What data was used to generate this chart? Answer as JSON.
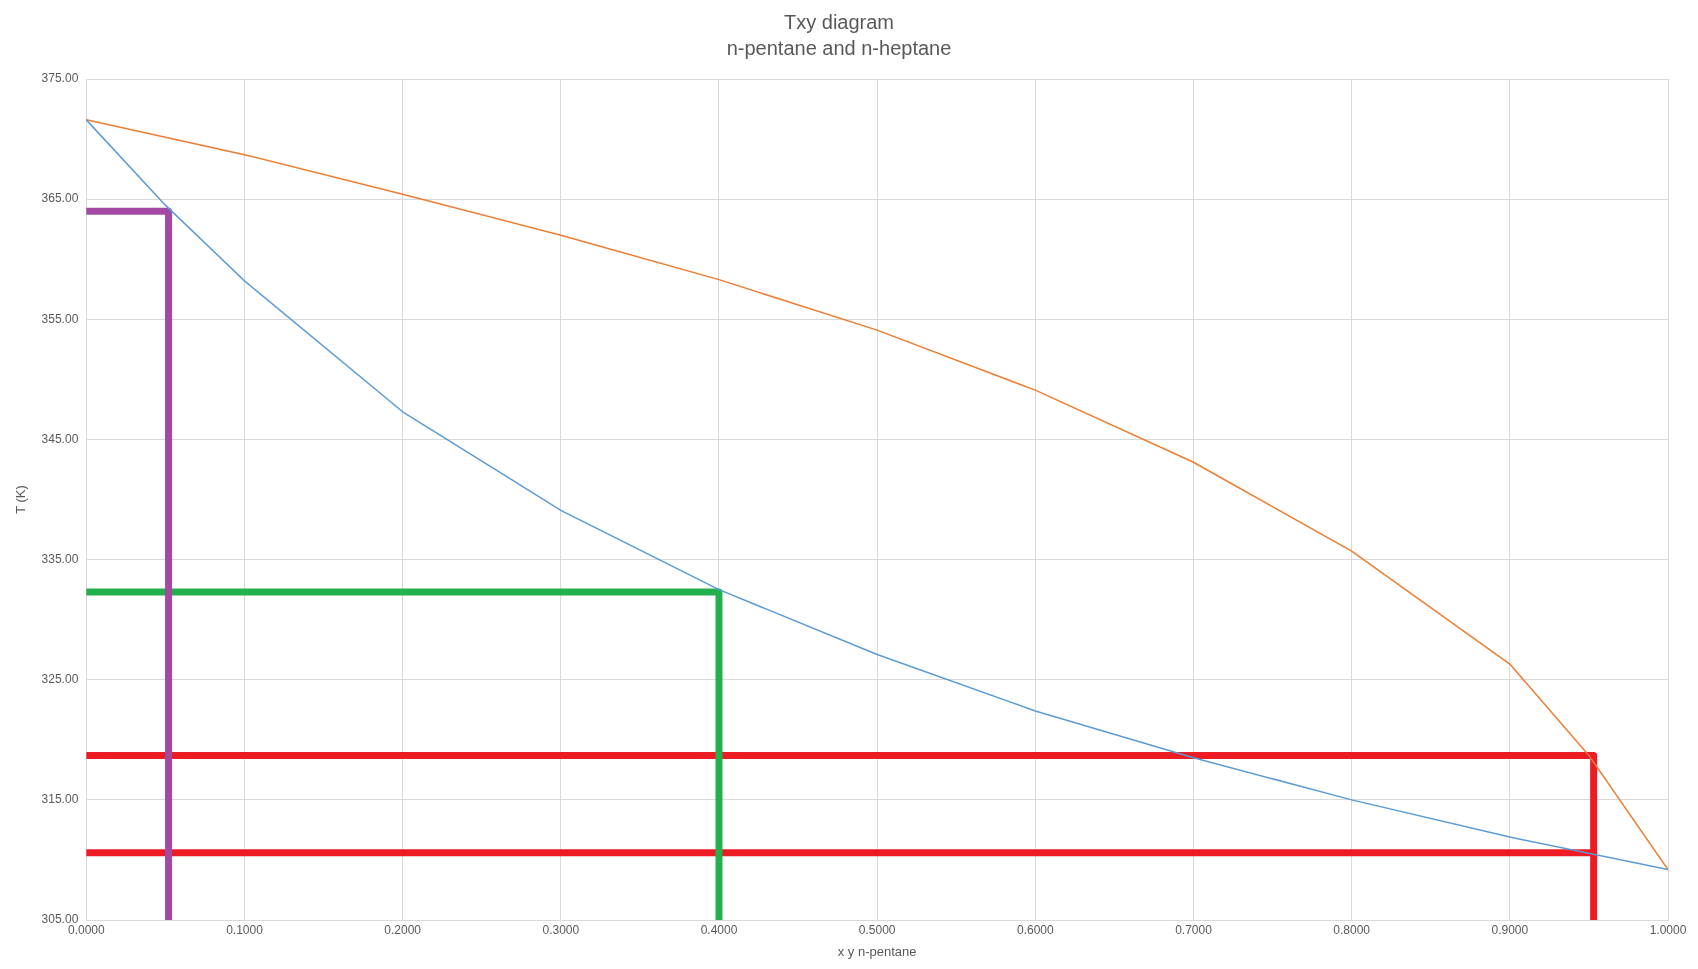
{
  "chart_data": {
    "type": "line",
    "title": "Txy diagram",
    "subtitle": "n-pentane and n-heptane",
    "xlabel": "x y n-pentane",
    "ylabel": "T (K)",
    "xlim": [
      0,
      1
    ],
    "xticks": [
      {
        "value": 0,
        "label": "0.0000"
      },
      {
        "value": 0.1,
        "label": "0.1000"
      },
      {
        "value": 0.2,
        "label": "0.2000"
      },
      {
        "value": 0.3,
        "label": "0.3000"
      },
      {
        "value": 0.4,
        "label": "0.4000"
      },
      {
        "value": 0.5,
        "label": "0.5000"
      },
      {
        "value": 0.6,
        "label": "0.6000"
      },
      {
        "value": 0.7,
        "label": "0.7000"
      },
      {
        "value": 0.8,
        "label": "0.8000"
      },
      {
        "value": 0.9,
        "label": "0.9000"
      },
      {
        "value": 1,
        "label": "1.0000"
      }
    ],
    "ylim": [
      305,
      375
    ],
    "yticks": [
      {
        "value": 305,
        "label": "305.00"
      },
      {
        "value": 315,
        "label": "315.00"
      },
      {
        "value": 325,
        "label": "325.00"
      },
      {
        "value": 335,
        "label": "335.00"
      },
      {
        "value": 345,
        "label": "345.00"
      },
      {
        "value": 355,
        "label": "355.00"
      },
      {
        "value": 365,
        "label": "365.00"
      },
      {
        "value": 375,
        "label": "375.00"
      }
    ],
    "grid": true,
    "legend": false,
    "marker": "none",
    "line_style": "solid",
    "series": [
      {
        "color": "#5b9bd5",
        "x": [
          0,
          0.05,
          0.1,
          0.2,
          0.3,
          0.4,
          0.5,
          0.6,
          0.7,
          0.8,
          0.9,
          1
        ],
        "values": [
          371.6,
          364.5,
          358.2,
          347.3,
          339.1,
          332.5,
          327.1,
          322.4,
          318.5,
          315.0,
          311.9,
          309.2
        ]
      },
      {
        "color": "#ed7d31",
        "x": [
          0,
          0.1,
          0.2,
          0.3,
          0.4,
          0.5,
          0.6,
          0.7,
          0.8,
          0.9,
          0.95,
          1
        ],
        "values": [
          371.6,
          368.7,
          365.4,
          362.0,
          358.3,
          354.1,
          349.1,
          343.1,
          335.7,
          326.3,
          318.7,
          309.2
        ]
      },
      {
        "color": "#a349a4",
        "x": [
          0,
          0.052,
          0.052
        ],
        "values": [
          364.0,
          364.0,
          305
        ]
      },
      {
        "color": "#22b14c",
        "x": [
          0,
          0.4,
          0.4
        ],
        "values": [
          332.3,
          332.3,
          305
        ]
      },
      {
        "color": "#ed1c24",
        "x": [
          0,
          0.953,
          0.953
        ],
        "values": [
          318.7,
          318.7,
          305
        ]
      },
      {
        "color": "#ed1c24",
        "x": [
          0,
          0.953
        ],
        "values": [
          310.6,
          310.6
        ]
      }
    ]
  }
}
